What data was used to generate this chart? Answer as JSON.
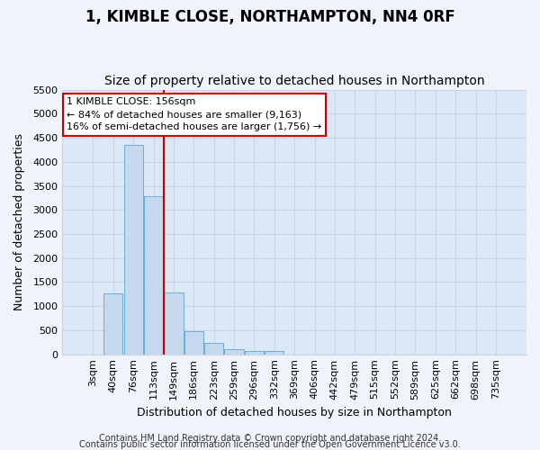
{
  "title": "1, KIMBLE CLOSE, NORTHAMPTON, NN4 0RF",
  "subtitle": "Size of property relative to detached houses in Northampton",
  "xlabel": "Distribution of detached houses by size in Northampton",
  "ylabel": "Number of detached properties",
  "footer_line1": "Contains HM Land Registry data © Crown copyright and database right 2024.",
  "footer_line2": "Contains public sector information licensed under the Open Government Licence v3.0.",
  "categories": [
    "3sqm",
    "40sqm",
    "76sqm",
    "113sqm",
    "149sqm",
    "186sqm",
    "223sqm",
    "259sqm",
    "296sqm",
    "332sqm",
    "369sqm",
    "406sqm",
    "442sqm",
    "479sqm",
    "515sqm",
    "552sqm",
    "589sqm",
    "625sqm",
    "662sqm",
    "698sqm",
    "735sqm"
  ],
  "values": [
    0,
    1270,
    4350,
    3280,
    1280,
    480,
    240,
    100,
    65,
    60,
    0,
    0,
    0,
    0,
    0,
    0,
    0,
    0,
    0,
    0,
    0
  ],
  "bar_color": "#c5d8ee",
  "bar_edge_color": "#6aaed6",
  "highlight_line_after_index": 3,
  "highlight_color": "#cc0000",
  "ylim": [
    0,
    5500
  ],
  "yticks": [
    0,
    500,
    1000,
    1500,
    2000,
    2500,
    3000,
    3500,
    4000,
    4500,
    5000,
    5500
  ],
  "annotation_title": "1 KIMBLE CLOSE: 156sqm",
  "annotation_line2": "← 84% of detached houses are smaller (9,163)",
  "annotation_line3": "16% of semi-detached houses are larger (1,756) →",
  "annotation_box_facecolor": "#ffffff",
  "annotation_box_edgecolor": "#cc0000",
  "grid_color": "#c8d4e8",
  "plot_bg_color": "#dce8f5",
  "fig_bg_color": "#f0f4fa",
  "title_fontsize": 12,
  "subtitle_fontsize": 10,
  "ylabel_fontsize": 9,
  "xlabel_fontsize": 9,
  "tick_fontsize": 8,
  "footer_fontsize": 7
}
